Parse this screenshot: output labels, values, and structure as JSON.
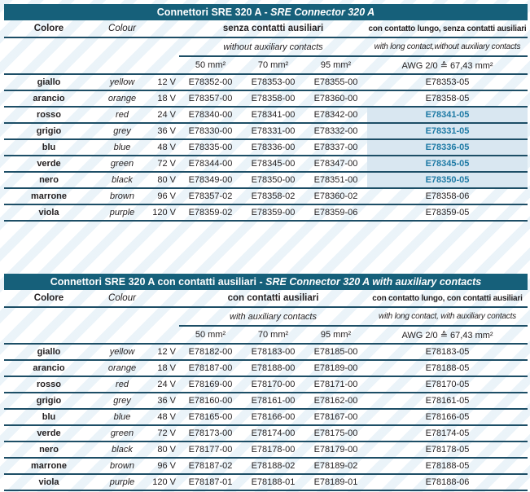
{
  "colors": {
    "header_bar": "#16607a",
    "rule_line": "#1d4e66",
    "highlight_bg": "#d9e7f1",
    "highlight_text": "#1e7aa5"
  },
  "tables": [
    {
      "title_it": "Connettori SRE 320 A",
      "title_sep": " - ",
      "title_en": "SRE Connector 320 A",
      "col_colore": "Colore",
      "col_colour": "Colour",
      "group_mid_it": "senza contatti ausiliari",
      "group_mid_en": "without auxiliary contacts",
      "group_long_it": "con contatto lungo, senza contatti ausiliari",
      "group_long_en": "with long contact,without auxiliary contacts",
      "size_50": "50 mm²",
      "size_70": "70 mm²",
      "size_95": "95 mm²",
      "awg_header": "AWG 2/0 ≙ 67,43 mm²",
      "rows": [
        {
          "colore": "giallo",
          "colour": "yellow",
          "volt": "12 V",
          "c50": "E78352-00",
          "c70": "E78353-00",
          "c95": "E78355-00",
          "awg": "E78353-05",
          "hl": false
        },
        {
          "colore": "arancio",
          "colour": "orange",
          "volt": "18 V",
          "c50": "E78357-00",
          "c70": "E78358-00",
          "c95": "E78360-00",
          "awg": "E78358-05",
          "hl": false
        },
        {
          "colore": "rosso",
          "colour": "red",
          "volt": "24 V",
          "c50": "E78340-00",
          "c70": "E78341-00",
          "c95": "E78342-00",
          "awg": "E78341-05",
          "hl": true
        },
        {
          "colore": "grigio",
          "colour": "grey",
          "volt": "36 V",
          "c50": "E78330-00",
          "c70": "E78331-00",
          "c95": "E78332-00",
          "awg": "E78331-05",
          "hl": true
        },
        {
          "colore": "blu",
          "colour": "blue",
          "volt": "48 V",
          "c50": "E78335-00",
          "c70": "E78336-00",
          "c95": "E78337-00",
          "awg": "E78336-05",
          "hl": true
        },
        {
          "colore": "verde",
          "colour": "green",
          "volt": "72 V",
          "c50": "E78344-00",
          "c70": "E78345-00",
          "c95": "E78347-00",
          "awg": "E78345-05",
          "hl": true
        },
        {
          "colore": "nero",
          "colour": "black",
          "volt": "80 V",
          "c50": "E78349-00",
          "c70": "E78350-00",
          "c95": "E78351-00",
          "awg": "E78350-05",
          "hl": true
        },
        {
          "colore": "marrone",
          "colour": "brown",
          "volt": "96 V",
          "c50": "E78357-02",
          "c70": "E78358-02",
          "c95": "E78360-02",
          "awg": "E78358-06",
          "hl": false
        },
        {
          "colore": "viola",
          "colour": "purple",
          "volt": "120 V",
          "c50": "E78359-02",
          "c70": "E78359-00",
          "c95": "E78359-06",
          "awg": "E78359-05",
          "hl": false
        }
      ]
    },
    {
      "title_it": "Connettori SRE 320 A con contatti ausiliari",
      "title_sep": " - ",
      "title_en": "SRE Connector 320 A with auxiliary contacts",
      "col_colore": "Colore",
      "col_colour": "Colour",
      "group_mid_it": "con contatti ausiliari",
      "group_mid_en": "with auxiliary contacts",
      "group_long_it": "con contatto lungo, con contatti ausiliari",
      "group_long_en": "with long contact, with auxiliary contacts",
      "size_50": "50 mm²",
      "size_70": "70 mm²",
      "size_95": "95 mm²",
      "awg_header": "AWG 2/0 ≙ 67,43 mm²",
      "rows": [
        {
          "colore": "giallo",
          "colour": "yellow",
          "volt": "12 V",
          "c50": "E78182-00",
          "c70": "E78183-00",
          "c95": "E78185-00",
          "awg": "E78183-05",
          "hl": false
        },
        {
          "colore": "arancio",
          "colour": "orange",
          "volt": "18 V",
          "c50": "E78187-00",
          "c70": "E78188-00",
          "c95": "E78189-00",
          "awg": "E78188-05",
          "hl": false
        },
        {
          "colore": "rosso",
          "colour": "red",
          "volt": "24 V",
          "c50": "E78169-00",
          "c70": "E78170-00",
          "c95": "E78171-00",
          "awg": "E78170-05",
          "hl": false
        },
        {
          "colore": "grigio",
          "colour": "grey",
          "volt": "36 V",
          "c50": "E78160-00",
          "c70": "E78161-00",
          "c95": "E78162-00",
          "awg": "E78161-05",
          "hl": false
        },
        {
          "colore": "blu",
          "colour": "blue",
          "volt": "48 V",
          "c50": "E78165-00",
          "c70": "E78166-00",
          "c95": "E78167-00",
          "awg": "E78166-05",
          "hl": false
        },
        {
          "colore": "verde",
          "colour": "green",
          "volt": "72 V",
          "c50": "E78173-00",
          "c70": "E78174-00",
          "c95": "E78175-00",
          "awg": "E78174-05",
          "hl": false
        },
        {
          "colore": "nero",
          "colour": "black",
          "volt": "80 V",
          "c50": "E78177-00",
          "c70": "E78178-00",
          "c95": "E78179-00",
          "awg": "E78178-05",
          "hl": false
        },
        {
          "colore": "marrone",
          "colour": "brown",
          "volt": "96 V",
          "c50": "E78187-02",
          "c70": "E78188-02",
          "c95": "E78189-02",
          "awg": "E78188-05",
          "hl": false
        },
        {
          "colore": "viola",
          "colour": "purple",
          "volt": "120 V",
          "c50": "E78187-01",
          "c70": "E78188-01",
          "c95": "E78189-01",
          "awg": "E78188-06",
          "hl": false
        }
      ]
    }
  ]
}
